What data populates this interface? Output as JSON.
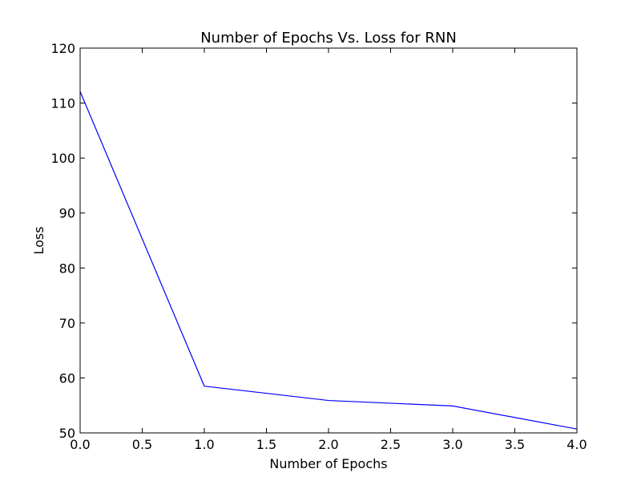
{
  "chart_data": {
    "type": "line",
    "title": "Number of Epochs Vs. Loss for RNN",
    "xlabel": "Number of Epochs",
    "ylabel": "Loss",
    "xlim": [
      0,
      4
    ],
    "ylim": [
      50,
      120
    ],
    "xticks": [
      0.0,
      0.5,
      1.0,
      1.5,
      2.0,
      2.5,
      3.0,
      3.5,
      4.0
    ],
    "xtick_labels": [
      "0.0",
      "0.5",
      "1.0",
      "1.5",
      "2.0",
      "2.5",
      "3.0",
      "3.5",
      "4.0"
    ],
    "yticks": [
      50,
      60,
      70,
      80,
      90,
      100,
      110,
      120
    ],
    "ytick_labels": [
      "50",
      "60",
      "70",
      "80",
      "90",
      "100",
      "110",
      "120"
    ],
    "grid": false,
    "series": [
      {
        "color": "#0000ff",
        "x": [
          0,
          1,
          2,
          3,
          4
        ],
        "y": [
          112.1,
          58.5,
          55.9,
          54.9,
          50.7
        ]
      }
    ]
  }
}
